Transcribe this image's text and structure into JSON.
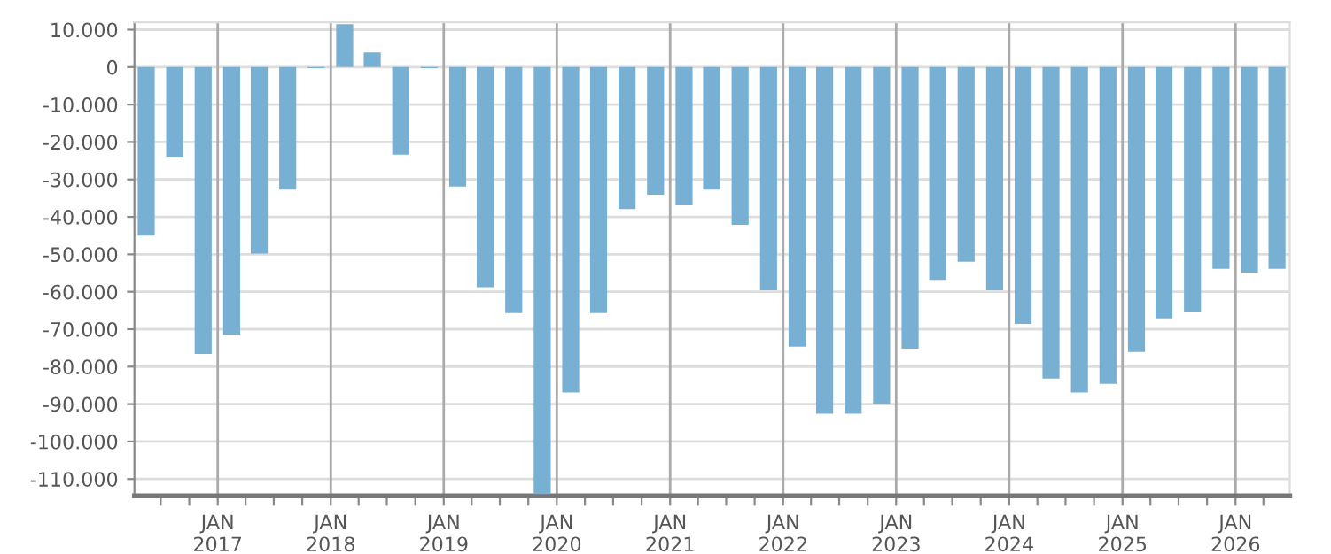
{
  "chart_data": {
    "type": "bar",
    "color": "#78b0d3",
    "x": [
      "2016-05-15",
      "2016-08-15",
      "2016-11-15",
      "2017-02-15",
      "2017-05-15",
      "2017-08-15",
      "2017-11-15",
      "2018-02-15",
      "2018-05-15",
      "2018-08-15",
      "2018-11-15",
      "2019-02-15",
      "2019-05-15",
      "2019-08-15",
      "2019-11-15",
      "2020-02-15",
      "2020-05-15",
      "2020-08-15",
      "2020-11-15",
      "2021-02-15",
      "2021-05-15",
      "2021-08-15",
      "2021-11-15",
      "2022-02-15",
      "2022-05-15",
      "2022-08-15",
      "2022-11-15",
      "2023-02-15",
      "2023-05-15",
      "2023-08-15",
      "2023-11-15",
      "2024-02-15",
      "2024-05-15",
      "2024-08-15",
      "2024-11-15",
      "2025-02-15",
      "2025-05-15",
      "2025-08-15",
      "2025-11-15",
      "2026-02-15",
      "2026-05-15"
    ],
    "values": [
      -45000,
      -23900,
      -76600,
      -71500,
      -49800,
      -32700,
      -300,
      11500,
      3900,
      -23400,
      -300,
      -31900,
      -58800,
      -65700,
      -114000,
      -86900,
      -65700,
      -37900,
      -34100,
      -36900,
      -32700,
      -42100,
      -59600,
      -74700,
      -92600,
      -92600,
      -89900,
      -75200,
      -56800,
      -52000,
      -59600,
      -68600,
      -83200,
      -86900,
      -84600,
      -76100,
      -67100,
      -65300,
      -53900,
      -54900,
      -53900
    ],
    "xlim": [
      "2016-04-07",
      "2026-06-25"
    ],
    "xticks": [
      {
        "value": "2016-07-01",
        "label": null
      },
      {
        "value": "2016-10-01",
        "label": null
      },
      {
        "value": "2017-01-01",
        "label": "JAN\n2017"
      },
      {
        "value": "2017-04-01",
        "label": null
      },
      {
        "value": "2017-07-01",
        "label": null
      },
      {
        "value": "2017-10-01",
        "label": null
      },
      {
        "value": "2018-01-01",
        "label": "JAN\n2018"
      },
      {
        "value": "2018-04-01",
        "label": null
      },
      {
        "value": "2018-07-01",
        "label": null
      },
      {
        "value": "2018-10-01",
        "label": null
      },
      {
        "value": "2019-01-01",
        "label": "JAN\n2019"
      },
      {
        "value": "2019-04-01",
        "label": null
      },
      {
        "value": "2019-07-01",
        "label": null
      },
      {
        "value": "2019-10-01",
        "label": null
      },
      {
        "value": "2020-01-01",
        "label": "JAN\n2020"
      },
      {
        "value": "2020-04-01",
        "label": null
      },
      {
        "value": "2020-07-01",
        "label": null
      },
      {
        "value": "2020-10-01",
        "label": null
      },
      {
        "value": "2021-01-01",
        "label": "JAN\n2021"
      },
      {
        "value": "2021-04-01",
        "label": null
      },
      {
        "value": "2021-07-01",
        "label": null
      },
      {
        "value": "2021-10-01",
        "label": null
      },
      {
        "value": "2022-01-01",
        "label": "JAN\n2022"
      },
      {
        "value": "2022-04-01",
        "label": null
      },
      {
        "value": "2022-07-01",
        "label": null
      },
      {
        "value": "2022-10-01",
        "label": null
      },
      {
        "value": "2023-01-01",
        "label": "JAN\n2023"
      },
      {
        "value": "2023-04-01",
        "label": null
      },
      {
        "value": "2023-07-01",
        "label": null
      },
      {
        "value": "2023-10-01",
        "label": null
      },
      {
        "value": "2024-01-01",
        "label": "JAN\n2024"
      },
      {
        "value": "2024-04-01",
        "label": null
      },
      {
        "value": "2024-07-01",
        "label": null
      },
      {
        "value": "2024-10-01",
        "label": null
      },
      {
        "value": "2025-01-01",
        "label": "JAN\n2025"
      },
      {
        "value": "2025-04-01",
        "label": null
      },
      {
        "value": "2025-07-01",
        "label": null
      },
      {
        "value": "2025-10-01",
        "label": null
      },
      {
        "value": "2026-01-01",
        "label": "JAN\n2026"
      },
      {
        "value": "2026-04-01",
        "label": null
      }
    ],
    "ylim": [
      -114500,
      12000
    ],
    "yticks": [
      {
        "value": 10000,
        "label": "10.000"
      },
      0,
      {
        "value": -10000,
        "label": "-10.000"
      },
      {
        "value": -20000,
        "label": "-20.000"
      },
      {
        "value": -30000,
        "label": "-30.000"
      },
      {
        "value": -40000,
        "label": "-40.000"
      },
      {
        "value": -50000,
        "label": "-50.000"
      },
      {
        "value": -60000,
        "label": "-60.000"
      },
      {
        "value": -70000,
        "label": "-70.000"
      },
      {
        "value": -80000,
        "label": "-80.000"
      },
      {
        "value": -90000,
        "label": "-90.000"
      },
      {
        "value": -100000,
        "label": "-100.000"
      },
      {
        "value": -110000,
        "label": "-110.000"
      }
    ],
    "grid": true
  }
}
